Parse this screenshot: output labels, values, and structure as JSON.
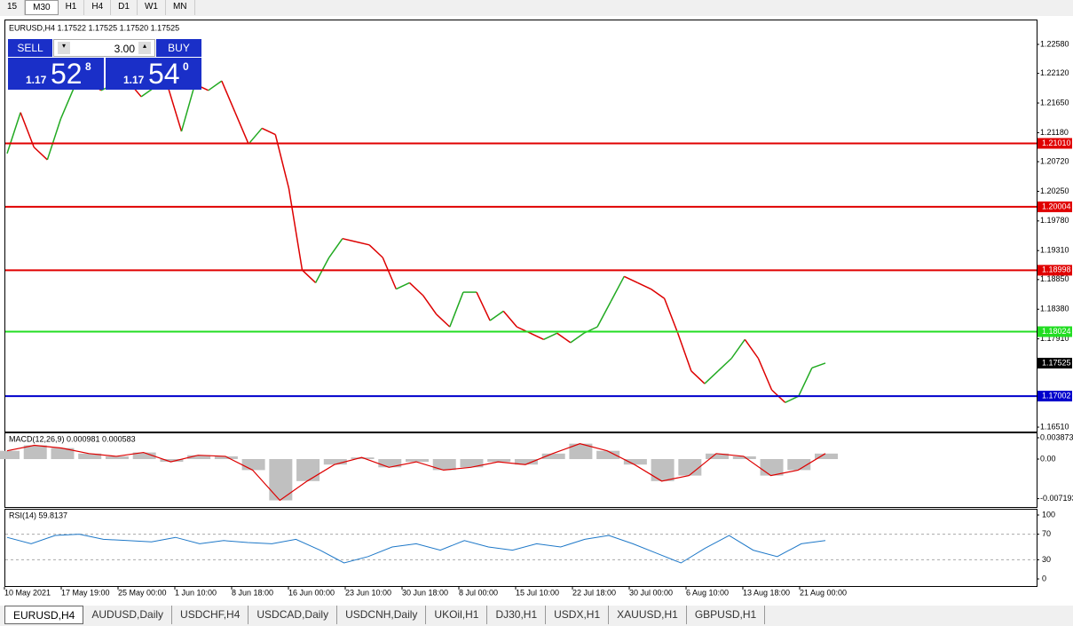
{
  "timeframes": [
    "15",
    "M30",
    "H1",
    "H4",
    "D1",
    "W1",
    "MN"
  ],
  "active_timeframe": 1,
  "chart": {
    "header": "EURUSD,H4  1.17522 1.17525 1.17520 1.17525",
    "ylim": [
      1.1644,
      1.2296
    ],
    "yticks": [
      {
        "value": 1.2258,
        "label": "1.22580"
      },
      {
        "value": 1.2212,
        "label": "1.22120"
      },
      {
        "value": 1.2165,
        "label": "1.21650"
      },
      {
        "value": 1.2118,
        "label": "1.21180"
      },
      {
        "value": 1.2072,
        "label": "1.20720"
      },
      {
        "value": 1.2025,
        "label": "1.20250"
      },
      {
        "value": 1.1978,
        "label": "1.19780"
      },
      {
        "value": 1.1931,
        "label": "1.19310"
      },
      {
        "value": 1.1885,
        "label": "1.18850"
      },
      {
        "value": 1.1838,
        "label": "1.18380"
      },
      {
        "value": 1.1791,
        "label": "1.17910"
      },
      {
        "value": 1.1651,
        "label": "1.16510"
      }
    ],
    "levels": [
      {
        "value": 1.2101,
        "label": "1.21010",
        "color": "#e00000"
      },
      {
        "value": 1.20004,
        "label": "1.20004",
        "color": "#e00000"
      },
      {
        "value": 1.18998,
        "label": "1.18998",
        "color": "#e00000"
      },
      {
        "value": 1.18024,
        "label": "1.18024",
        "color": "#22dd22"
      },
      {
        "value": 1.17002,
        "label": "1.17002",
        "color": "#0000cc"
      }
    ],
    "current": {
      "value": 1.17525,
      "label": "1.17525"
    },
    "closes": [
      1.2085,
      1.215,
      1.2095,
      1.2075,
      1.214,
      1.219,
      1.22,
      1.2185,
      1.2195,
      1.22,
      1.2175,
      1.219,
      1.219,
      1.212,
      1.2195,
      1.2185,
      1.22,
      1.215,
      1.21,
      1.2125,
      1.2115,
      1.203,
      1.19,
      1.188,
      1.192,
      1.195,
      1.1945,
      1.194,
      1.192,
      1.187,
      1.188,
      1.186,
      1.183,
      1.181,
      1.1865,
      1.1865,
      1.182,
      1.1835,
      1.181,
      1.18,
      1.179,
      1.18,
      1.1785,
      1.18,
      1.181,
      1.185,
      1.189,
      1.188,
      1.187,
      1.1855,
      1.18,
      1.174,
      1.172,
      1.174,
      1.176,
      1.179,
      1.176,
      1.171,
      1.169,
      1.17,
      1.1745,
      1.17525
    ],
    "xlabels": [
      "10 May 2021",
      "17 May 19:00",
      "25 May 00:00",
      "1 Jun 10:00",
      "8 Jun 18:00",
      "16 Jun 00:00",
      "23 Jun 10:00",
      "30 Jun 18:00",
      "8 Jul 00:00",
      "15 Jul 10:00",
      "22 Jul 18:00",
      "30 Jul 00:00",
      "6 Aug 10:00",
      "13 Aug 18:00",
      "21 Aug 00:00"
    ]
  },
  "trade_panel": {
    "sell": "SELL",
    "lots": "3.00",
    "buy": "BUY",
    "bid_big": "1.17",
    "bid_pips": "52",
    "bid_frac": "8",
    "ask_big": "1.17",
    "ask_pips": "54",
    "ask_frac": "0"
  },
  "macd": {
    "label": "MACD(12,26,9) 0.000981 0.000583",
    "ylim": [
      -0.00871,
      0.00468
    ],
    "yticks": [
      {
        "value": 0.003873,
        "label": "0.003873"
      },
      {
        "value": 0,
        "label": "0.00"
      },
      {
        "value": -0.007193,
        "label": "-0.007193"
      }
    ],
    "values": [
      0.0015,
      0.0025,
      0.002,
      0.001,
      0.0005,
      0.0012,
      -0.0005,
      0.0007,
      0.0005,
      -0.002,
      -0.0075,
      -0.004,
      -0.001,
      0.0003,
      -0.0015,
      -0.0005,
      -0.002,
      -0.0015,
      -0.0005,
      -0.001,
      0.001,
      0.0028,
      0.0015,
      -0.001,
      -0.004,
      -0.003,
      0.001,
      0.0005,
      -0.003,
      -0.002,
      0.001
    ]
  },
  "rsi": {
    "label": "RSI(14) 59.8137",
    "ylim": [
      0,
      100
    ],
    "yticks": [
      100,
      70,
      30,
      0
    ],
    "levels": [
      70,
      30
    ],
    "values": [
      65,
      55,
      68,
      70,
      62,
      60,
      58,
      65,
      55,
      60,
      57,
      55,
      62,
      45,
      25,
      35,
      50,
      55,
      45,
      60,
      50,
      45,
      55,
      50,
      62,
      68,
      55,
      40,
      25,
      48,
      68,
      45,
      35,
      55,
      60
    ]
  },
  "tabs": [
    "EURUSD,H4",
    "AUDUSD,Daily",
    "USDCHF,H4",
    "USDCAD,Daily",
    "USDCNH,Daily",
    "UKOil,H1",
    "DJ30,H1",
    "USDX,H1",
    "XAUUSD,H1",
    "GBPUSD,H1"
  ],
  "active_tab": 0
}
